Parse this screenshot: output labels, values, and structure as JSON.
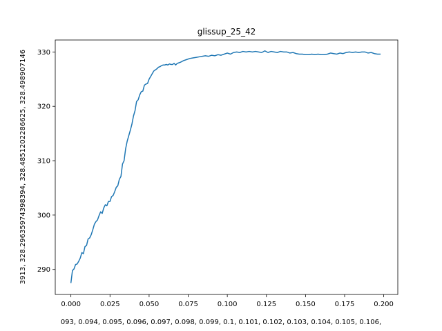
{
  "chart_data": {
    "type": "line",
    "title": "glissup_25_42",
    "xlabel": "093, 0.094, 0.095, 0.096, 0.097, 0.098, 0.099, 0.1, 0.101, 0.102, 0.103, 0.104, 0.105, 0.106,",
    "ylabel": "3913, 328.29635974398394, 328.4851202286625, 328.498907146",
    "xlim": [
      -0.01,
      0.209
    ],
    "ylim": [
      285.4,
      332.2
    ],
    "x_ticks": [
      0.0,
      0.025,
      0.05,
      0.075,
      0.1,
      0.125,
      0.15,
      0.175,
      0.2
    ],
    "x_tick_labels": [
      "0.000",
      "0.025",
      "0.050",
      "0.075",
      "0.100",
      "0.125",
      "0.150",
      "0.175",
      "0.200"
    ],
    "y_ticks": [
      290,
      300,
      310,
      320,
      330
    ],
    "y_tick_labels": [
      "290",
      "300",
      "310",
      "320",
      "330"
    ],
    "grid": false,
    "line_color": "#1f77b4",
    "x": [
      0.0,
      0.001,
      0.002,
      0.003,
      0.004,
      0.005,
      0.006,
      0.007,
      0.008,
      0.009,
      0.01,
      0.011,
      0.012,
      0.013,
      0.014,
      0.015,
      0.016,
      0.017,
      0.018,
      0.019,
      0.02,
      0.021,
      0.022,
      0.023,
      0.024,
      0.025,
      0.026,
      0.027,
      0.028,
      0.029,
      0.03,
      0.031,
      0.032,
      0.033,
      0.034,
      0.035,
      0.036,
      0.037,
      0.038,
      0.039,
      0.04,
      0.041,
      0.042,
      0.043,
      0.044,
      0.045,
      0.046,
      0.047,
      0.048,
      0.049,
      0.05,
      0.051,
      0.052,
      0.053,
      0.054,
      0.055,
      0.056,
      0.057,
      0.058,
      0.059,
      0.06,
      0.061,
      0.062,
      0.063,
      0.064,
      0.065,
      0.066,
      0.067,
      0.068,
      0.069,
      0.07,
      0.072,
      0.074,
      0.076,
      0.078,
      0.08,
      0.082,
      0.084,
      0.086,
      0.088,
      0.09,
      0.092,
      0.094,
      0.096,
      0.098,
      0.1,
      0.102,
      0.104,
      0.106,
      0.108,
      0.11,
      0.112,
      0.114,
      0.116,
      0.118,
      0.12,
      0.122,
      0.124,
      0.126,
      0.128,
      0.13,
      0.132,
      0.134,
      0.136,
      0.138,
      0.14,
      0.142,
      0.144,
      0.146,
      0.148,
      0.15,
      0.152,
      0.154,
      0.156,
      0.158,
      0.16,
      0.162,
      0.164,
      0.166,
      0.168,
      0.17,
      0.172,
      0.174,
      0.176,
      0.178,
      0.18,
      0.182,
      0.184,
      0.186,
      0.188,
      0.19,
      0.192,
      0.194,
      0.196,
      0.198
    ],
    "y": [
      287.5,
      289.8,
      290.1,
      290.9,
      291.0,
      291.5,
      292.1,
      293.1,
      292.9,
      294.2,
      294.4,
      295.6,
      295.8,
      296.4,
      297.3,
      298.3,
      298.8,
      299.1,
      299.9,
      300.6,
      300.3,
      301.3,
      301.9,
      301.7,
      302.5,
      302.5,
      303.4,
      303.6,
      304.3,
      305.1,
      305.4,
      306.6,
      307.1,
      309.4,
      310.0,
      312.2,
      313.6,
      314.6,
      315.6,
      316.7,
      318.2,
      319.2,
      320.9,
      321.2,
      322.1,
      322.7,
      322.8,
      323.9,
      324.1,
      324.2,
      325.0,
      325.5,
      326.0,
      326.5,
      326.7,
      326.9,
      327.2,
      327.3,
      327.5,
      327.6,
      327.6,
      327.7,
      327.6,
      327.8,
      327.7,
      327.7,
      327.9,
      327.6,
      327.9,
      328.0,
      328.1,
      328.4,
      328.6,
      328.8,
      328.9,
      329.0,
      329.1,
      329.2,
      329.3,
      329.2,
      329.4,
      329.3,
      329.5,
      329.4,
      329.6,
      329.8,
      329.6,
      329.9,
      330.0,
      329.9,
      330.1,
      330.0,
      330.1,
      330.0,
      330.1,
      330.0,
      329.9,
      330.2,
      329.9,
      330.1,
      330.0,
      329.9,
      330.1,
      330.0,
      330.0,
      329.8,
      329.9,
      329.7,
      329.6,
      329.6,
      329.5,
      329.5,
      329.6,
      329.5,
      329.6,
      329.5,
      329.5,
      329.6,
      329.8,
      329.7,
      329.6,
      329.8,
      329.7,
      329.9,
      330.0,
      329.9,
      330.0,
      329.9,
      330.0,
      330.0,
      329.8,
      329.9,
      329.7,
      329.6,
      329.6
    ]
  }
}
